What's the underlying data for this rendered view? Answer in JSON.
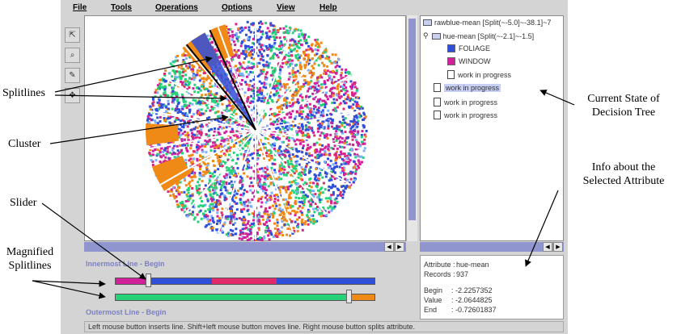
{
  "menu": [
    "File",
    "Tools",
    "Operations",
    "Options",
    "View",
    "Help"
  ],
  "toolbar": {
    "icons": [
      "select-icon",
      "zoom-icon",
      "brush-icon",
      "move-icon"
    ],
    "glyphs": [
      "⇱",
      "⌕",
      "✎",
      "✥"
    ]
  },
  "annotations": {
    "splitlines": "Splitlines",
    "cluster": "Cluster",
    "slider": "Slider",
    "magnified": [
      "Magnified",
      "Splitlines"
    ],
    "tree_state": [
      "Current State of",
      "Decision Tree"
    ],
    "info_attr": [
      "Info about the",
      "Selected Attribute"
    ]
  },
  "tree": {
    "root": "rawblue-mean [Split(~-5.0]~-38.1]~7",
    "child": "hue-mean [Split(~-2.1]~-1.5]",
    "leaves": [
      {
        "label": "FOLIAGE",
        "color": "#2f4fdb"
      },
      {
        "label": "WINDOW",
        "color": "#d0209a"
      }
    ],
    "wip": "work in progress"
  },
  "slider": {
    "inner_label": "Innermost Line - Begin",
    "outer_label": "Outermost Line - Begin",
    "colors": {
      "magenta": "#d0209a",
      "blue": "#2f4fdb",
      "pink": "#e02a6a",
      "green": "#25d27a",
      "orange": "#f08a17"
    }
  },
  "info": {
    "attribute_key": "Attribute :",
    "attribute_val": "hue-mean",
    "records_key": "Records :",
    "records_val": "937",
    "begin_key": "Begin",
    "begin_val": ": -2.2257352",
    "value_key": "Value",
    "value_val": ": -2.0644825",
    "end_key": "End",
    "end_val": ": -0.72601837"
  },
  "status": "Left mouse button inserts line. Shift+left mouse button moves line. Right mouse button splits attribute."
}
